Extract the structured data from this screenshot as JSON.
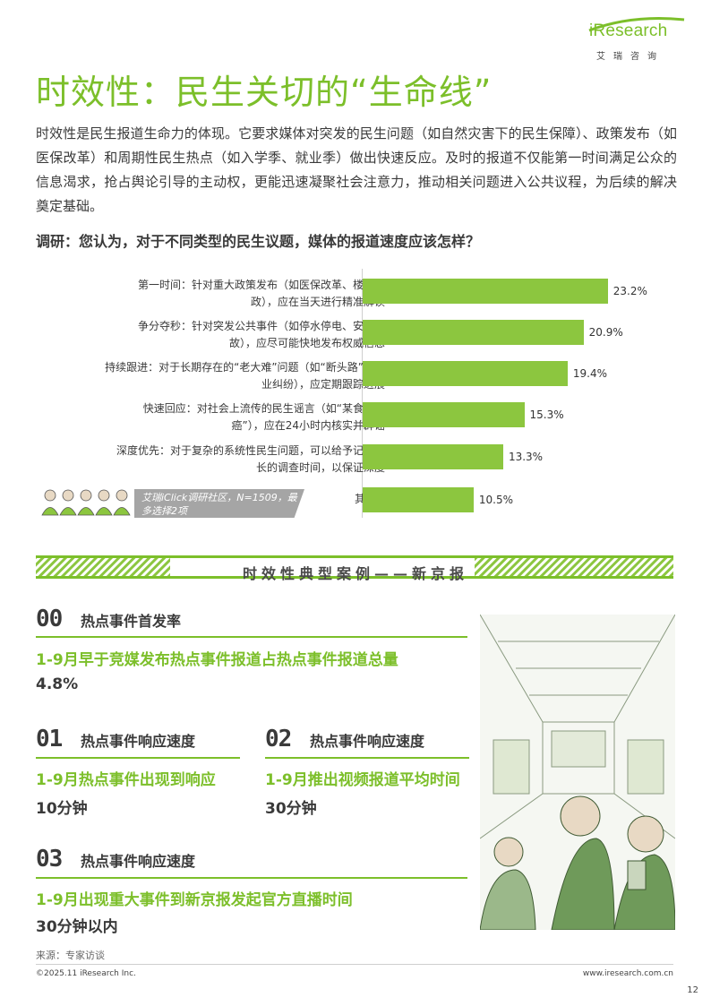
{
  "brand": {
    "logo": "iResearch",
    "logo_cn": "艾瑞咨询"
  },
  "page_title": "时效性：民生关切的“生命线”",
  "intro": "时效性是民生报道生命力的体现。它要求媒体对突发的民生问题（如自然灾害下的民生保障）、政策发布（如医保改革）和周期性民生热点（如入学季、就业季）做出快速反应。及时的报道不仅能第一时间满足公众的信息渴求，抢占舆论引导的主动权，更能迅速凝聚社会注意力，推动相关问题进入公共议程，为后续的解决奠定基础。",
  "survey_question": "调研：您认为，对于不同类型的民生议题，媒体的报道速度应该怎样？",
  "survey_note": "艾瑞iClick调研社区，N=1509，最多选择2项",
  "colors": {
    "accent": "#7cbf2a",
    "bar": "#8cc63f",
    "note": "#a5a5a5"
  },
  "chart_data": {
    "type": "bar",
    "orientation": "horizontal",
    "categories": [
      "第一时间：针对重大政策发布（如医保改革、楼市新政），应在当天进行精准解读",
      "争分夺秒：针对突发公共事件（如停水停电、安全事故），应尽可能快地发布权威信息",
      "持续跟进：对于长期存在的“老大难”问题（如“断头路”、物业纠纷），应定期跟踪进展",
      "快速回应：对社会上流传的民生谣言（如“某食品致癌”），应在24小时内核实并辟谣",
      "深度优先：对于复杂的系统性民生问题，可以给予记者更长的调查时间，以保证深度",
      "其他"
    ],
    "label_lines": [
      [
        "第一时间：针对重大政策发布（如医保改革、楼市新",
        "政），应在当天进行精准解读"
      ],
      [
        "争分夺秒：针对突发公共事件（如停水停电、安全事",
        "故），应尽可能快地发布权威信息"
      ],
      [
        "持续跟进：对于长期存在的“老大难”问题（如“断头路”、物",
        "业纠纷），应定期跟踪进展"
      ],
      [
        "快速回应：对社会上流传的民生谣言（如“某食品致",
        "癌”），应在24小时内核实并辟谣"
      ],
      [
        "深度优先：对于复杂的系统性民生问题，可以给予记者更",
        "长的调查时间，以保证深度"
      ],
      [
        "其他"
      ]
    ],
    "values": [
      23.2,
      20.9,
      19.4,
      15.3,
      13.3,
      10.5
    ],
    "value_labels": [
      "23.2%",
      "20.9%",
      "19.4%",
      "15.3%",
      "13.3%",
      "10.5%"
    ],
    "xlim": [
      0,
      25
    ]
  },
  "section_title": "时效性典型案例——新京报",
  "cases": [
    {
      "code": "00",
      "head": "热点事件首发率",
      "desc": "1-9月早于竞媒发布热点事件报道占热点事件报道总量",
      "value": "4.8%"
    },
    {
      "code": "01",
      "head": "热点事件响应速度",
      "desc": "1-9月热点事件出现到响应",
      "value": "10分钟"
    },
    {
      "code": "02",
      "head": "热点事件响应速度",
      "desc": "1-9月推出视频报道平均时间",
      "value": "30分钟"
    },
    {
      "code": "03",
      "head": "热点事件响应速度",
      "desc": "1-9月出现重大事件到新京报发起官方直播时间",
      "value": "30分钟以内"
    }
  ],
  "source": "来源：专家访谈",
  "footer": {
    "copyright": "©2025.11 iResearch Inc.",
    "site": "www.iresearch.com.cn",
    "page": "12"
  }
}
